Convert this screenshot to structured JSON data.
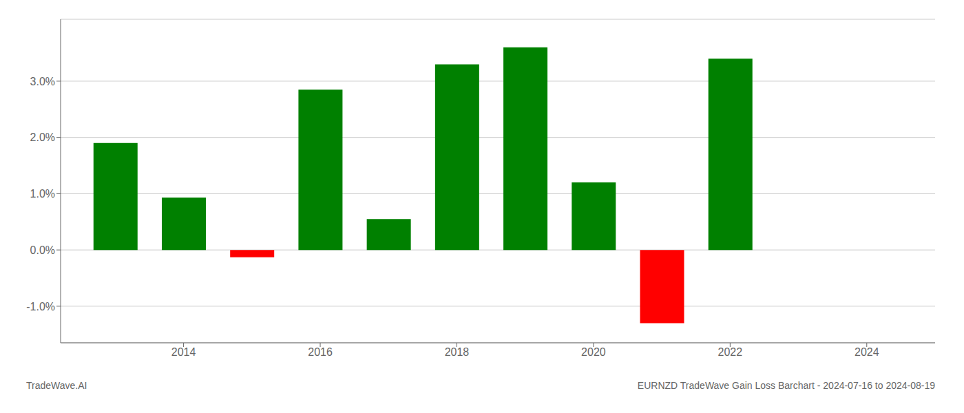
{
  "chart_data": {
    "type": "bar",
    "title": "EURNZD TradeWave Gain Loss Barchart - 2024-07-16 to 2024-08-19",
    "annotations": [
      "TradeWave.AI"
    ],
    "x": [
      2013,
      2014,
      2015,
      2016,
      2017,
      2018,
      2019,
      2020,
      2021,
      2022,
      2023
    ],
    "values": [
      0.019,
      0.0093,
      -0.0013,
      0.0285,
      0.0055,
      0.033,
      0.036,
      0.012,
      -0.013,
      0.034,
      0.0
    ],
    "colors": [
      "#008000",
      "#008000",
      "#ff0000",
      "#008000",
      "#008000",
      "#008000",
      "#008000",
      "#008000",
      "#ff0000",
      "#008000",
      "#008000"
    ],
    "xlim": [
      2012.2,
      2025.0
    ],
    "xticks": [
      2014,
      2016,
      2018,
      2020,
      2022,
      2024
    ],
    "ylim": [
      -0.0165,
      0.041
    ],
    "yticks": [
      {
        "value": -0.01,
        "label": "-1.0%"
      },
      {
        "value": 0.0,
        "label": "0.0%"
      },
      {
        "value": 0.01,
        "label": "1.0%"
      },
      {
        "value": 0.02,
        "label": "2.0%"
      },
      {
        "value": 0.03,
        "label": "3.0%"
      }
    ],
    "grid": true
  }
}
